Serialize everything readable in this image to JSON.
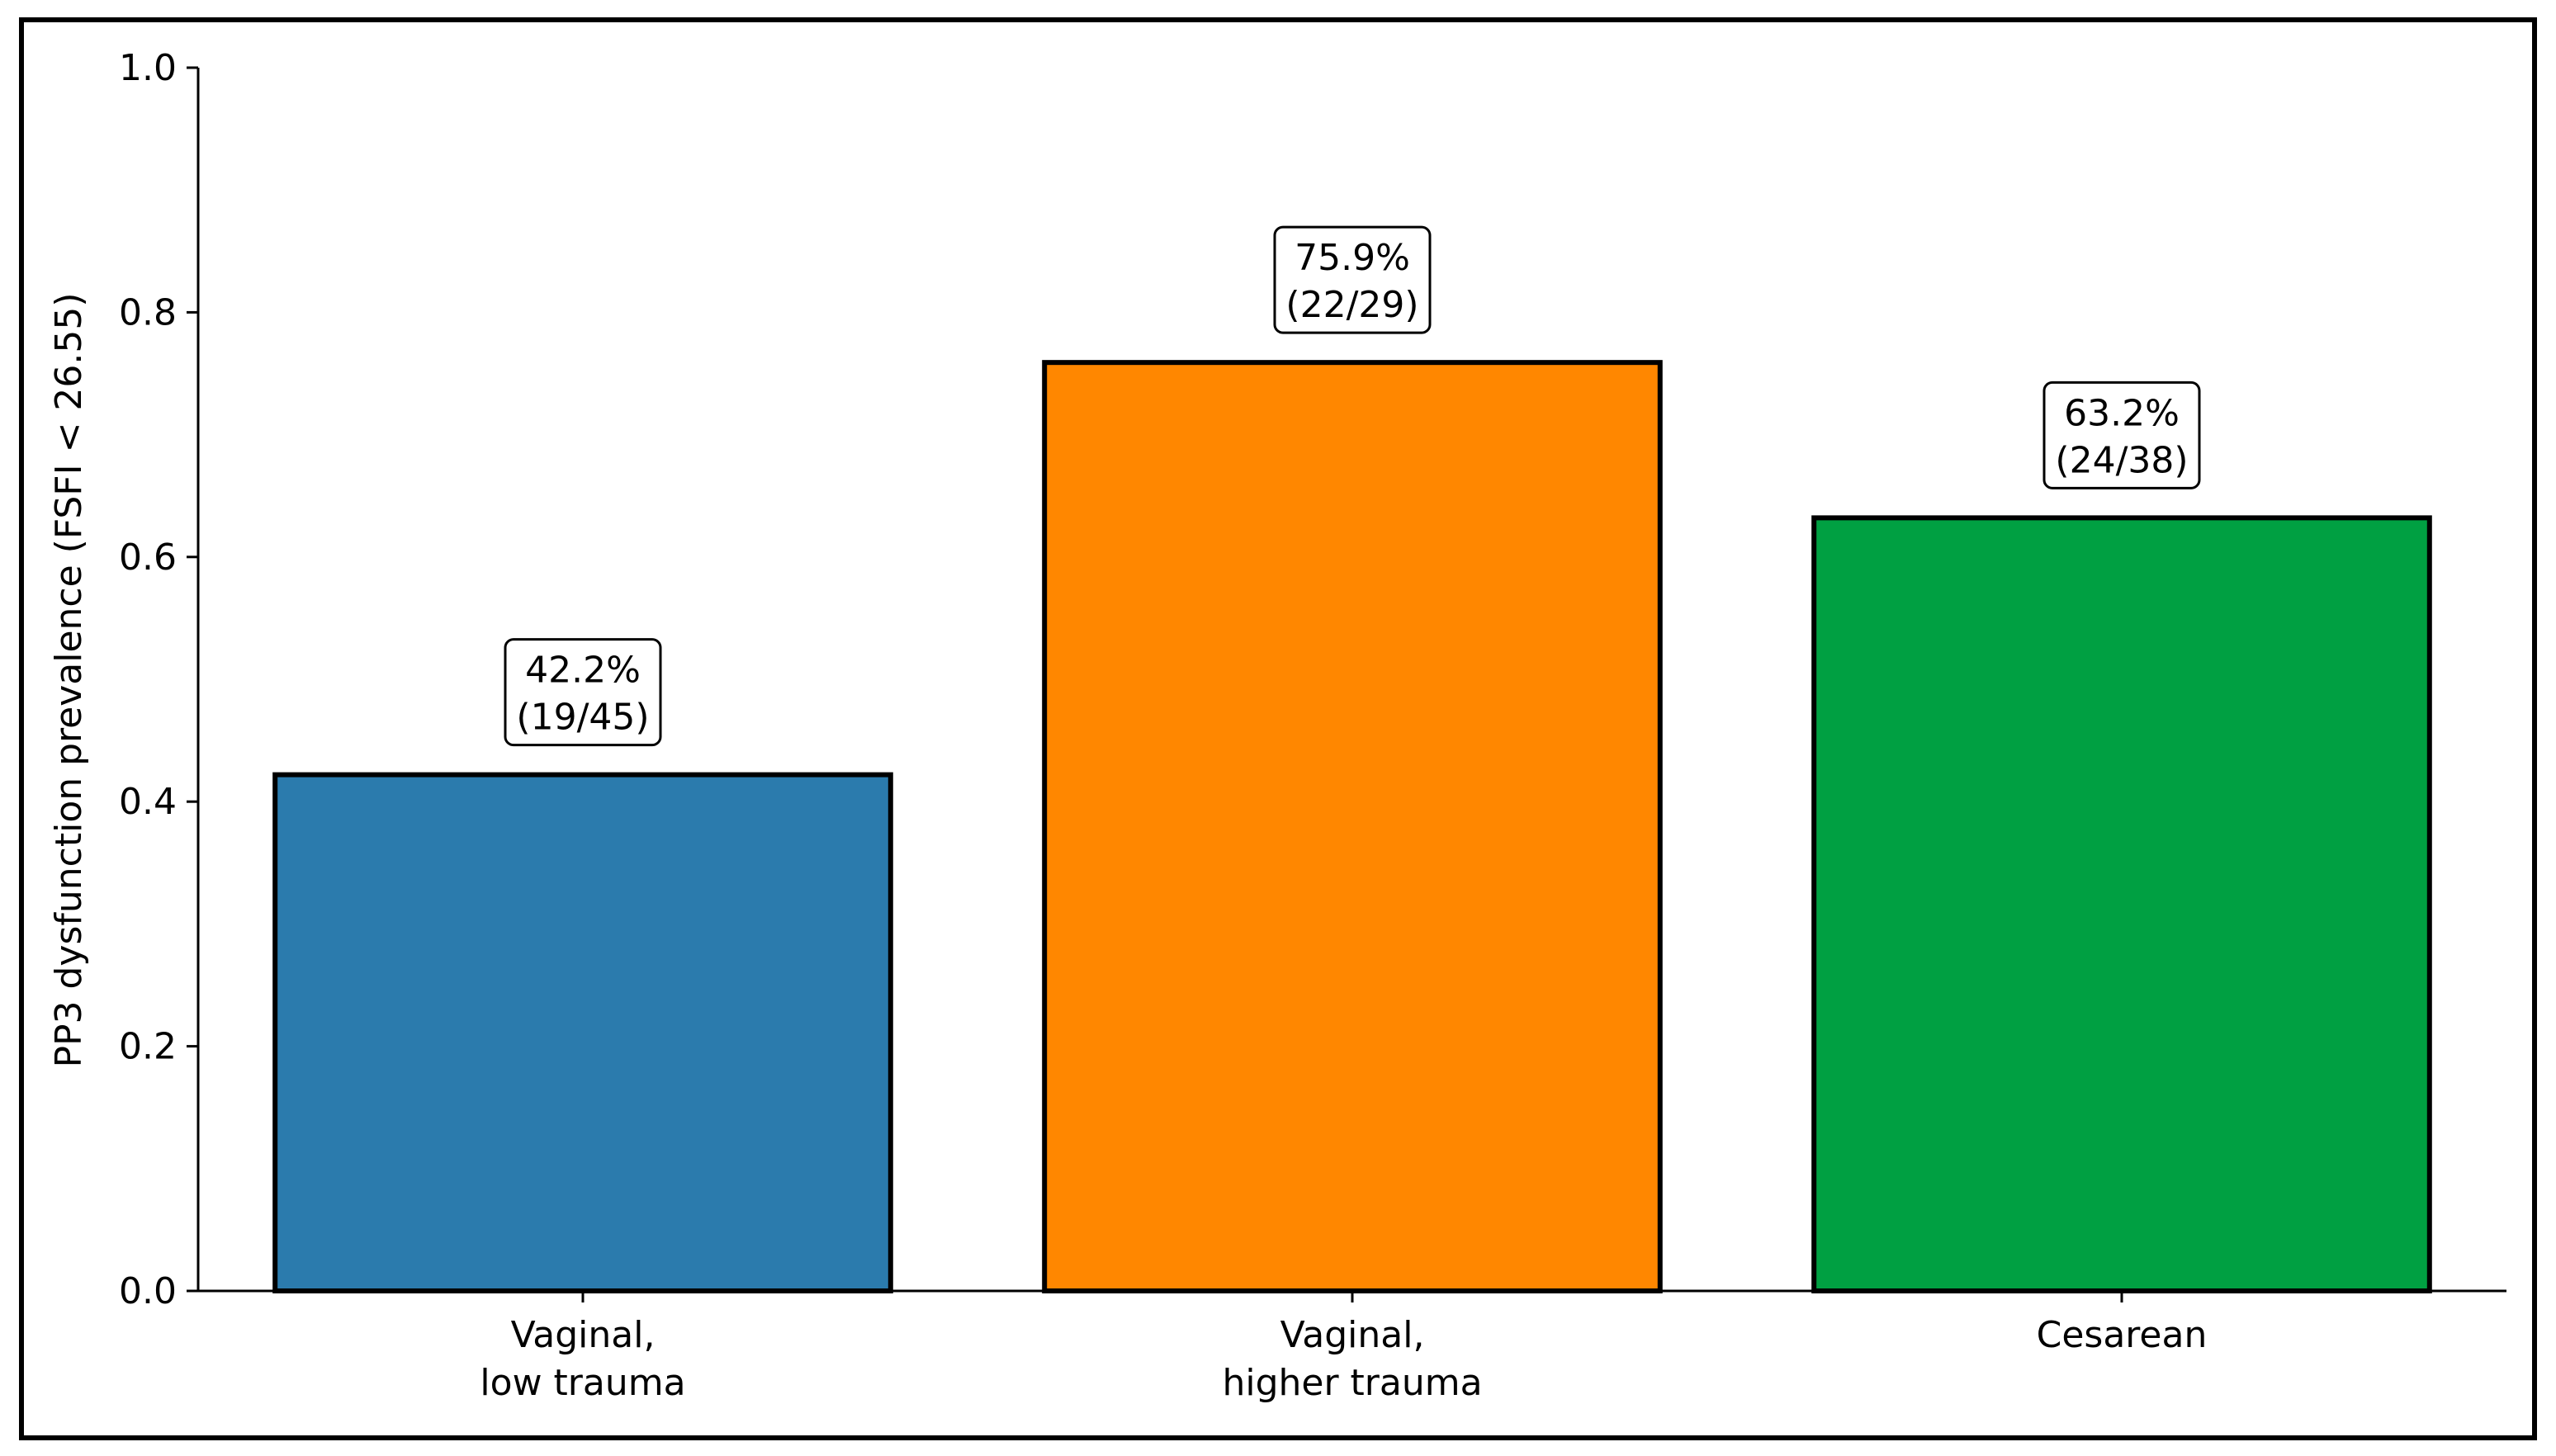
{
  "chart_data": {
    "type": "bar",
    "title": "",
    "xlabel": "",
    "ylabel": "PP3 dysfunction prevalence (FSFI < 26.55)",
    "ylim": [
      0,
      1.0
    ],
    "yticks": [
      "0.0",
      "0.2",
      "0.4",
      "0.6",
      "0.8",
      "1.0"
    ],
    "grid": false,
    "legend": "none",
    "categories": [
      [
        "Vaginal,",
        "low trauma"
      ],
      [
        "Vaginal,",
        "higher trauma"
      ],
      [
        "Cesarean"
      ]
    ],
    "values": [
      0.422,
      0.759,
      0.632
    ],
    "colors": [
      "#2b7bad",
      "#ff8700",
      "#00a042"
    ],
    "annotations": [
      [
        "42.2%",
        "(19/45)"
      ],
      [
        "75.9%",
        "(22/29)"
      ],
      [
        "63.2%",
        "(24/38)"
      ]
    ]
  }
}
